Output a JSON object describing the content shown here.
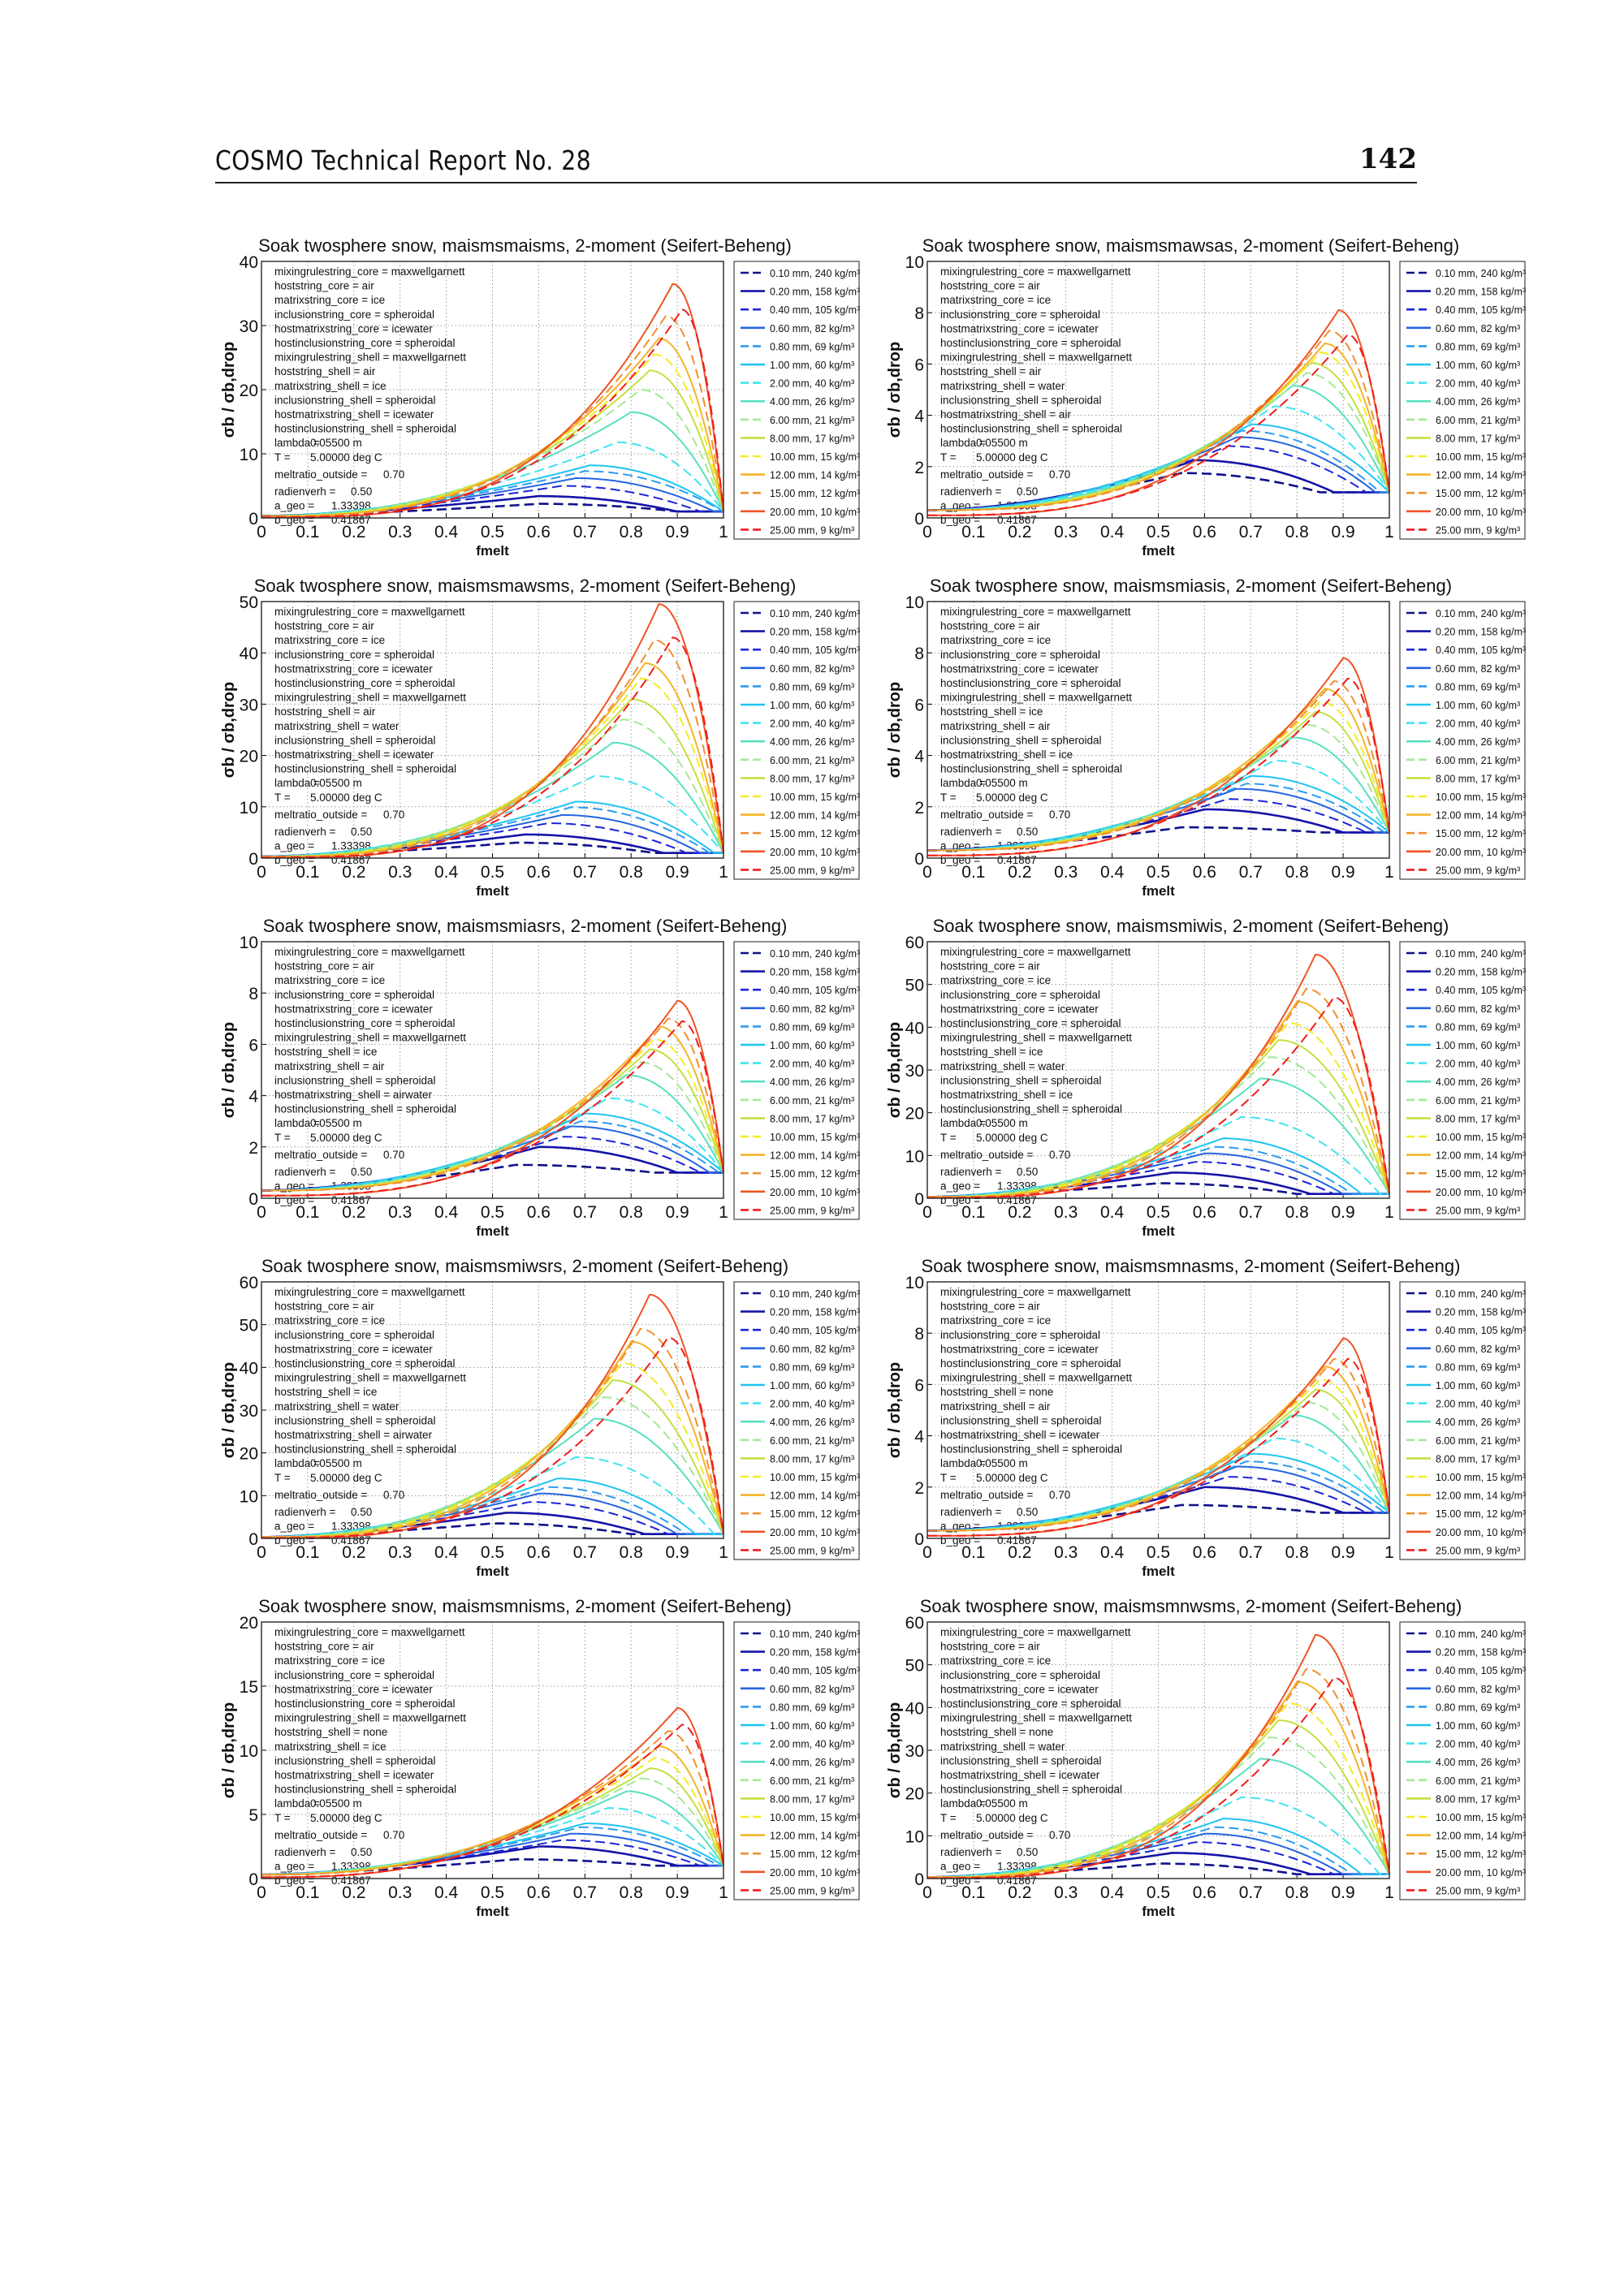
{
  "header": {
    "title": "COSMO Technical Report No. 28",
    "page_number": "142"
  },
  "common": {
    "ylabel": "σb / σb,drop",
    "xlabel": "fmelt",
    "x_ticks": [
      "0",
      "0.1",
      "0.2",
      "0.3",
      "0.4",
      "0.5",
      "0.6",
      "0.7",
      "0.8",
      "0.9",
      "1"
    ],
    "series_labels": [
      "0.10 mm, 240 kg/m³",
      "0.20 mm, 158 kg/m³",
      "0.40 mm, 105 kg/m³",
      "0.60 mm,  82 kg/m³",
      "0.80 mm,  69 kg/m³",
      "1.00 mm,  60 kg/m³",
      "2.00 mm,  40 kg/m³",
      "4.00 mm,  26 kg/m³",
      "6.00 mm,  21 kg/m³",
      "8.00 mm,  17 kg/m³",
      "10.00 mm,  15 kg/m³",
      "12.00 mm,  14 kg/m³",
      "15.00 mm,  12 kg/m³",
      "20.00 mm,  10 kg/m³",
      "25.00 mm,   9 kg/m³"
    ],
    "series_colors": [
      "#10108a",
      "#1414a8",
      "#1c24d8",
      "#2464e0",
      "#2c9cf0",
      "#1ec4f0",
      "#40e4f0",
      "#58e0c0",
      "#a4e898",
      "#c4e040",
      "#f4ec20",
      "#f4b428",
      "#f09030",
      "#ee5424",
      "#f01c1c"
    ],
    "series_dashed": [
      true,
      false,
      true,
      false,
      true,
      false,
      true,
      false,
      true,
      false,
      true,
      false,
      true,
      false,
      true
    ],
    "start_value": 0.3,
    "start_value_red": 0.1,
    "end_value": 1,
    "annotation_common": {
      "mixingrulestring_core": "maxwellgarnett",
      "hoststring_core": "air",
      "matrixstring_core": "ice",
      "inclusionstring_core": "spheroidal",
      "hostmatrixstring_core": "icewater",
      "hostinclusionstring_core": "spheroidal",
      "mixingrulestring_shell": "maxwellgarnett",
      "inclusionstring_shell": "spheroidal",
      "hostinclusionstring_shell": "spheroidal",
      "lambda": "0.05500 m",
      "T": "5.00000 deg C",
      "meltratio_outside": "0.70",
      "radienverh": "0.50",
      "a_geo": "1.33398",
      "b_geo": "0.41867"
    }
  },
  "chart_data": [
    {
      "type": "line",
      "title": "Soak twosphere snow, maismsmaisms, 2-moment (Seifert-Beheng)",
      "ylim": [
        0,
        40
      ],
      "y_ticks": [
        "0",
        "10",
        "20",
        "30",
        "40"
      ],
      "shell": {
        "hoststring_shell": "air",
        "matrixstring_shell": "ice",
        "hostmatrixstring_shell": "icewater"
      },
      "peak_value": [
        2.2,
        3.4,
        5,
        6.2,
        7.3,
        8.2,
        11.8,
        16.5,
        20,
        23,
        25.5,
        28,
        31.5,
        36.5,
        32.5
      ],
      "peak_fmelt": [
        0.6,
        0.6,
        0.65,
        0.68,
        0.7,
        0.71,
        0.77,
        0.8,
        0.82,
        0.84,
        0.85,
        0.86,
        0.875,
        0.89,
        0.91
      ]
    },
    {
      "type": "line",
      "title": "Soak twosphere snow, maismsmawsas, 2-moment (Seifert-Beheng)",
      "ylim": [
        0,
        10
      ],
      "y_ticks": [
        "0",
        "2",
        "4",
        "6",
        "8",
        "10"
      ],
      "shell": {
        "hoststring_shell": "air",
        "matrixstring_shell": "water",
        "hostmatrixstring_shell": "air"
      },
      "peak_value": [
        1.75,
        2.25,
        2.8,
        3.15,
        3.4,
        3.65,
        4.35,
        5.15,
        5.65,
        6.05,
        6.45,
        6.8,
        7.3,
        8.1,
        7.15
      ],
      "peak_fmelt": [
        0.55,
        0.58,
        0.65,
        0.67,
        0.68,
        0.7,
        0.75,
        0.79,
        0.82,
        0.83,
        0.85,
        0.86,
        0.87,
        0.89,
        0.91
      ]
    },
    {
      "type": "line",
      "title": "Soak twosphere snow, maismsmawsms, 2-moment (Seifert-Beheng)",
      "ylim": [
        0,
        50
      ],
      "y_ticks": [
        "0",
        "10",
        "20",
        "30",
        "40",
        "50"
      ],
      "shell": {
        "hoststring_shell": "air",
        "matrixstring_shell": "water",
        "hostmatrixstring_shell": "icewater"
      },
      "peak_value": [
        3,
        4.6,
        6.8,
        8.4,
        9.9,
        11,
        16,
        22.5,
        27,
        31,
        35,
        38,
        42.5,
        49.5,
        43
      ],
      "peak_fmelt": [
        0.55,
        0.57,
        0.62,
        0.65,
        0.67,
        0.68,
        0.72,
        0.76,
        0.78,
        0.8,
        0.82,
        0.83,
        0.85,
        0.86,
        0.89
      ]
    },
    {
      "type": "line",
      "title": "Soak twosphere snow, maismsmiasis, 2-moment (Seifert-Beheng)",
      "ylim": [
        0,
        10
      ],
      "y_ticks": [
        "0",
        "2",
        "4",
        "6",
        "8",
        "10"
      ],
      "shell": {
        "hoststring_shell": "ice",
        "matrixstring_shell": "air",
        "hostmatrixstring_shell": "ice"
      },
      "peak_value": [
        1.2,
        1.9,
        2.3,
        2.7,
        2.9,
        3.2,
        3.8,
        4.7,
        5.2,
        5.7,
        6.1,
        6.6,
        6.9,
        7.8,
        7.0
      ],
      "peak_fmelt": [
        0.55,
        0.6,
        0.65,
        0.67,
        0.69,
        0.7,
        0.75,
        0.79,
        0.82,
        0.84,
        0.85,
        0.86,
        0.88,
        0.9,
        0.91
      ]
    },
    {
      "type": "line",
      "title": "Soak twosphere snow, maismsmiasrs, 2-moment (Seifert-Beheng)",
      "ylim": [
        0,
        10
      ],
      "y_ticks": [
        "0",
        "2",
        "4",
        "6",
        "8",
        "10"
      ],
      "shell": {
        "hoststring_shell": "ice",
        "matrixstring_shell": "air",
        "hostmatrixstring_shell": "airwater"
      },
      "peak_value": [
        1.3,
        2.0,
        2.4,
        2.8,
        3.0,
        3.3,
        3.9,
        4.8,
        5.3,
        5.8,
        6.2,
        6.7,
        7.0,
        7.7,
        6.9
      ],
      "peak_fmelt": [
        0.55,
        0.6,
        0.65,
        0.67,
        0.69,
        0.7,
        0.75,
        0.79,
        0.82,
        0.84,
        0.85,
        0.86,
        0.88,
        0.9,
        0.91
      ]
    },
    {
      "type": "line",
      "title": "Soak twosphere snow, maismsmiwis, 2-moment (Seifert-Beheng)",
      "ylim": [
        0,
        60
      ],
      "y_ticks": [
        "0",
        "10",
        "20",
        "30",
        "40",
        "50",
        "60"
      ],
      "shell": {
        "hoststring_shell": "ice",
        "matrixstring_shell": "water",
        "hostmatrixstring_shell": "ice"
      },
      "peak_value": [
        3.5,
        6,
        8.5,
        10.5,
        12,
        14,
        19,
        28,
        33,
        37,
        41,
        46,
        49,
        57,
        47
      ],
      "peak_fmelt": [
        0.5,
        0.53,
        0.58,
        0.6,
        0.62,
        0.64,
        0.68,
        0.72,
        0.74,
        0.76,
        0.78,
        0.8,
        0.82,
        0.84,
        0.88
      ]
    },
    {
      "type": "line",
      "title": "Soak twosphere snow, maismsmiwsrs, 2-moment (Seifert-Beheng)",
      "ylim": [
        0,
        60
      ],
      "y_ticks": [
        "0",
        "10",
        "20",
        "30",
        "40",
        "50",
        "60"
      ],
      "shell": {
        "hoststring_shell": "ice",
        "matrixstring_shell": "water",
        "hostmatrixstring_shell": "airwater"
      },
      "peak_value": [
        3.5,
        6,
        8.5,
        10.5,
        12,
        14,
        19,
        28,
        33,
        37,
        41,
        46,
        49,
        57,
        47
      ],
      "peak_fmelt": [
        0.5,
        0.53,
        0.58,
        0.6,
        0.62,
        0.64,
        0.68,
        0.72,
        0.74,
        0.76,
        0.78,
        0.8,
        0.82,
        0.84,
        0.88
      ]
    },
    {
      "type": "line",
      "title": "Soak twosphere snow, maismsmnasms, 2-moment (Seifert-Beheng)",
      "ylim": [
        0,
        10
      ],
      "y_ticks": [
        "0",
        "2",
        "4",
        "6",
        "8",
        "10"
      ],
      "shell": {
        "hoststring_shell": "none",
        "matrixstring_shell": "air",
        "hostmatrixstring_shell": "icewater"
      },
      "peak_value": [
        1.3,
        2.0,
        2.4,
        2.8,
        3.0,
        3.3,
        3.9,
        4.8,
        5.3,
        5.8,
        6.2,
        6.7,
        7.0,
        7.8,
        7.0
      ],
      "peak_fmelt": [
        0.55,
        0.6,
        0.65,
        0.67,
        0.69,
        0.7,
        0.75,
        0.79,
        0.82,
        0.84,
        0.85,
        0.86,
        0.88,
        0.9,
        0.91
      ]
    },
    {
      "type": "line",
      "title": "Soak twosphere snow, maismsmnisms, 2-moment (Seifert-Beheng)",
      "ylim": [
        0,
        20
      ],
      "y_ticks": [
        "0",
        "5",
        "10",
        "15",
        "20"
      ],
      "shell": {
        "hoststring_shell": "none",
        "matrixstring_shell": "ice",
        "hostmatrixstring_shell": "icewater"
      },
      "peak_value": [
        1.5,
        2.5,
        3,
        3.5,
        4,
        4.3,
        5.5,
        6.8,
        7.8,
        8.6,
        9.4,
        10.3,
        11.5,
        13.3,
        12
      ],
      "peak_fmelt": [
        0.55,
        0.6,
        0.65,
        0.67,
        0.69,
        0.7,
        0.75,
        0.79,
        0.82,
        0.84,
        0.85,
        0.86,
        0.88,
        0.9,
        0.91
      ]
    },
    {
      "type": "line",
      "title": "Soak twosphere snow, maismsmnwsms, 2-moment (Seifert-Beheng)",
      "ylim": [
        0,
        60
      ],
      "y_ticks": [
        "0",
        "10",
        "20",
        "30",
        "40",
        "50",
        "60"
      ],
      "shell": {
        "hoststring_shell": "none",
        "matrixstring_shell": "water",
        "hostmatrixstring_shell": "icewater"
      },
      "peak_value": [
        3.5,
        6,
        8.5,
        10.5,
        12,
        14,
        19,
        28,
        33,
        37,
        41,
        46,
        49,
        57,
        47
      ],
      "peak_fmelt": [
        0.5,
        0.53,
        0.58,
        0.6,
        0.62,
        0.64,
        0.68,
        0.72,
        0.74,
        0.76,
        0.78,
        0.8,
        0.82,
        0.84,
        0.88
      ]
    }
  ]
}
